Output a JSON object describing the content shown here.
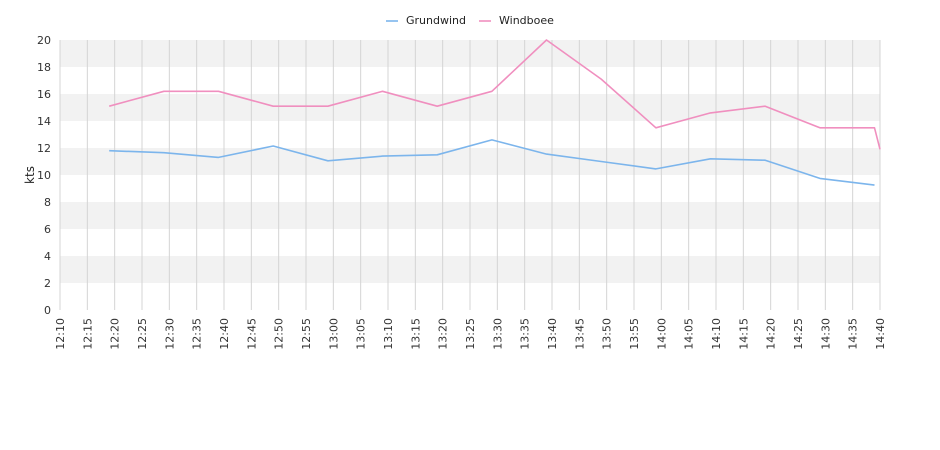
{
  "chart_data": {
    "type": "line",
    "ylabel": "kts",
    "ylim": [
      0,
      20
    ],
    "yticks": [
      "0",
      "2",
      "4",
      "6",
      "8",
      "10",
      "12",
      "14",
      "16",
      "18",
      "20"
    ],
    "xticks": [
      "12:10",
      "12:15",
      "12:20",
      "12:25",
      "12:30",
      "12:35",
      "12:40",
      "12:45",
      "12:50",
      "12:55",
      "13:00",
      "13:05",
      "13:10",
      "13:15",
      "13:20",
      "13:25",
      "13:30",
      "13:35",
      "13:40",
      "13:45",
      "13:50",
      "13:55",
      "14:00",
      "14:05",
      "14:10",
      "14:15",
      "14:20",
      "14:25",
      "14:30",
      "14:35",
      "14:40"
    ],
    "xlim": [
      "12:10",
      "14:40"
    ],
    "grid": true,
    "legend_position": "top-center",
    "series": [
      {
        "name": "Grundwind",
        "color": "#7cb5ec",
        "points": [
          {
            "x": "12:19",
            "y": 11.8
          },
          {
            "x": "12:29",
            "y": 11.65
          },
          {
            "x": "12:39",
            "y": 11.3
          },
          {
            "x": "12:49",
            "y": 12.15
          },
          {
            "x": "12:59",
            "y": 11.05
          },
          {
            "x": "13:09",
            "y": 11.4
          },
          {
            "x": "13:19",
            "y": 11.5
          },
          {
            "x": "13:29",
            "y": 12.6
          },
          {
            "x": "13:39",
            "y": 11.55
          },
          {
            "x": "13:49",
            "y": 11.0
          },
          {
            "x": "13:59",
            "y": 10.45
          },
          {
            "x": "14:09",
            "y": 11.2
          },
          {
            "x": "14:19",
            "y": 11.1
          },
          {
            "x": "14:29",
            "y": 9.75
          },
          {
            "x": "14:39",
            "y": 9.25
          }
        ]
      },
      {
        "name": "Windboee",
        "color": "#f08fbf",
        "points": [
          {
            "x": "12:19",
            "y": 15.1
          },
          {
            "x": "12:29",
            "y": 16.2
          },
          {
            "x": "12:39",
            "y": 16.2
          },
          {
            "x": "12:49",
            "y": 15.1
          },
          {
            "x": "12:59",
            "y": 15.1
          },
          {
            "x": "13:09",
            "y": 16.2
          },
          {
            "x": "13:19",
            "y": 15.1
          },
          {
            "x": "13:29",
            "y": 16.2
          },
          {
            "x": "13:39",
            "y": 20.0
          },
          {
            "x": "13:49",
            "y": 17.1
          },
          {
            "x": "13:59",
            "y": 13.5
          },
          {
            "x": "14:09",
            "y": 14.6
          },
          {
            "x": "14:19",
            "y": 15.1
          },
          {
            "x": "14:29",
            "y": 13.5
          },
          {
            "x": "14:39",
            "y": 13.5
          },
          {
            "x": "14:40",
            "y": 11.9
          }
        ]
      }
    ]
  }
}
